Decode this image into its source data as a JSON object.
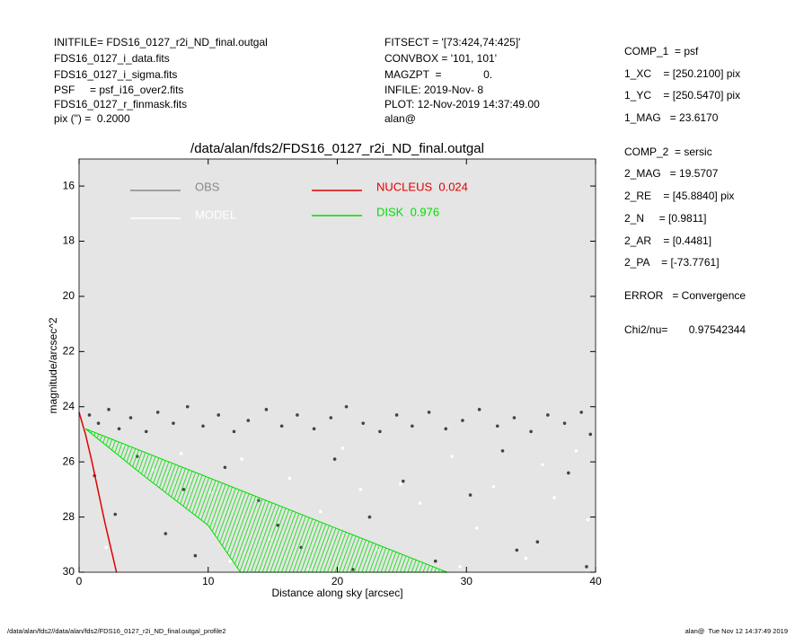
{
  "header": {
    "left": [
      "INITFILE= FDS16_0127_r2i_ND_final.outgal",
      "FDS16_0127_i_data.fits",
      "FDS16_0127_i_sigma.fits",
      "PSF     = psf_i16_over2.fits",
      "FDS16_0127_r_finmask.fits",
      "pix (\") =  0.2000"
    ],
    "middle": [
      "FITSECT = '[73:424,74:425]'",
      "CONVBOX = '101, 101'",
      "MAGZPT  =              0.",
      "INFILE: 2019-Nov- 8",
      "PLOT: 12-Nov-2019 14:37:49.00",
      "alan@"
    ]
  },
  "components": [
    "COMP_1  = psf",
    "1_XC    = [250.2100] pix",
    "1_YC    = [250.5470] pix",
    "1_MAG   = 23.6170",
    "COMP_2  = sersic",
    "2_MAG   = 19.5707",
    "2_RE    = [45.8840] pix",
    "2_N     = [0.9811]",
    "2_AR    = [0.4481]",
    "2_PA    = [-73.7761]",
    "ERROR   = Convergence",
    "Chi2/nu=       0.97542344"
  ],
  "footer": {
    "left": "/data/alan/fds2//data/alan/fds2/FDS16_0127_r2i_ND_final.outgal_profile2",
    "right": "alan@  Tue Nov 12 14:37:49 2019"
  },
  "chart_data": {
    "type": "scatter",
    "title": "/data/alan/fds2/FDS16_0127_r2i_ND_final.outgal",
    "xlabel": "Distance along sky [arcsec]",
    "ylabel": "magnitude/arcsec^2",
    "xlim": [
      0,
      40
    ],
    "ylim": [
      30,
      15.02
    ],
    "xticks": [
      0,
      10,
      20,
      30,
      40
    ],
    "yticks": [
      16,
      18,
      20,
      22,
      24,
      26,
      28,
      30
    ],
    "background": "#e5e5e5",
    "series": [
      {
        "name": "OBS",
        "type": "scatter",
        "color": "#444444",
        "legend_color": "#888888",
        "x": [
          0.8,
          1.5,
          2.3,
          3.1,
          4.0,
          5.2,
          6.1,
          7.3,
          8.4,
          9.6,
          10.8,
          12.0,
          13.1,
          14.5,
          15.7,
          16.9,
          18.2,
          19.5,
          20.7,
          22.0,
          23.3,
          24.6,
          25.8,
          27.1,
          28.4,
          29.7,
          31.0,
          32.4,
          33.7,
          35.0,
          36.3,
          37.6,
          38.9,
          39.6,
          1.2,
          2.8,
          4.5,
          6.7,
          9.0,
          11.3,
          13.9,
          17.2,
          19.8,
          22.5,
          25.1,
          27.6,
          30.3,
          32.8,
          35.5,
          37.9,
          39.3,
          8.1,
          15.4,
          21.2,
          33.9
        ],
        "values": [
          24.3,
          24.6,
          24.1,
          24.8,
          24.4,
          24.9,
          24.2,
          24.6,
          24.0,
          24.7,
          24.3,
          24.9,
          24.5,
          24.1,
          24.7,
          24.3,
          24.8,
          24.4,
          24.0,
          24.6,
          24.9,
          24.3,
          24.7,
          24.2,
          24.8,
          24.5,
          24.1,
          24.7,
          24.4,
          24.9,
          24.3,
          24.6,
          24.2,
          25.0,
          26.5,
          27.9,
          25.8,
          28.6,
          29.4,
          26.2,
          27.4,
          29.1,
          25.9,
          28.0,
          26.7,
          29.6,
          27.2,
          25.6,
          28.9,
          26.4,
          29.8,
          27.0,
          28.3,
          29.9,
          29.2
        ]
      },
      {
        "name": "MODEL",
        "type": "scatter",
        "color": "#ffffff",
        "legend_color": "#ffffff",
        "x": [
          3.5,
          5.8,
          7.9,
          10.2,
          12.6,
          14.8,
          16.3,
          18.7,
          20.4,
          23.1,
          24.9,
          26.4,
          28.9,
          30.8,
          32.1,
          34.6,
          36.8,
          38.5,
          39.4,
          11.7,
          21.8,
          29.5,
          35.9,
          2.1,
          17.8
        ],
        "values": [
          25.4,
          26.3,
          25.7,
          27.1,
          25.9,
          28.8,
          26.6,
          27.8,
          25.5,
          29.2,
          26.8,
          27.5,
          25.8,
          28.4,
          26.9,
          29.5,
          27.3,
          25.6,
          28.1,
          29.6,
          27.0,
          29.8,
          26.1,
          29.1,
          29.9
        ]
      },
      {
        "name": "NUCLEUS  0.024",
        "type": "line",
        "color": "#e00000",
        "legend_color": "#e00000",
        "x": [
          0,
          0.5,
          1,
          1.5,
          2,
          2.5,
          2.9
        ],
        "values": [
          24.2,
          25.0,
          26.0,
          27.1,
          28.2,
          29.2,
          30
        ]
      },
      {
        "name": "DISK  0.976",
        "type": "area",
        "color": "#00dd00",
        "legend_color": "#00dd00",
        "x": [
          0.5,
          28.5,
          12.5,
          10,
          5,
          0.5
        ],
        "values": [
          24.8,
          30,
          30,
          28.3,
          26.5,
          24.8
        ]
      }
    ]
  }
}
